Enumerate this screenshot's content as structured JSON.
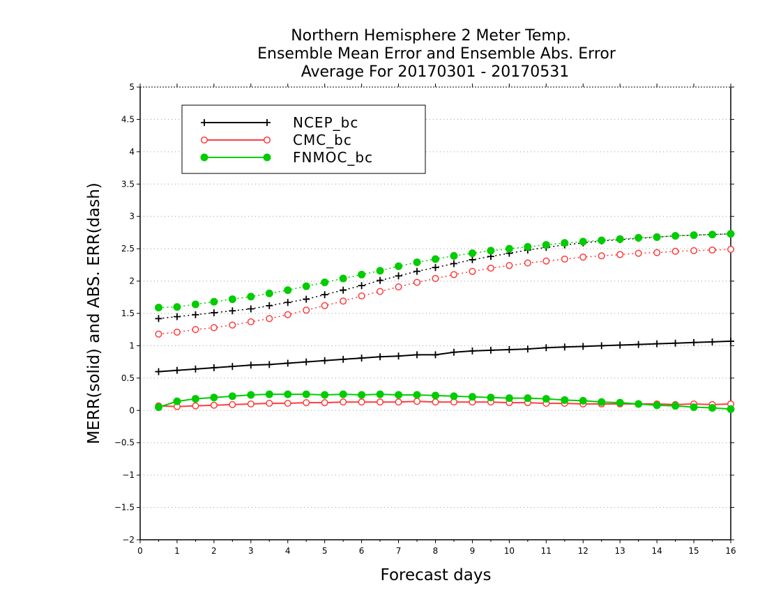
{
  "chart_data": {
    "type": "line",
    "title_lines": [
      "Northern Hemisphere 2 Meter Temp.",
      "Ensemble Mean Error and Ensemble Abs. Error",
      "Average For 20170301 - 20170531"
    ],
    "xlabel": "Forecast days",
    "ylabel": "MERR(solid) and ABS. ERR(dash)",
    "xlim": [
      0,
      16
    ],
    "ylim": [
      -2,
      5
    ],
    "x_ticks": [
      "0",
      "1",
      "2",
      "3",
      "4",
      "5",
      "6",
      "7",
      "8",
      "9",
      "10",
      "11",
      "12",
      "13",
      "14",
      "15",
      "16"
    ],
    "y_ticks": [
      "-2",
      "-1.5",
      "-1",
      "-0.5",
      "0",
      "0.5",
      "1",
      "1.5",
      "2",
      "2.5",
      "3",
      "3.5",
      "4",
      "4.5",
      "5"
    ],
    "grid": "horizontal dotted",
    "legend_position": "top-left",
    "x": [
      0.5,
      1,
      1.5,
      2,
      2.5,
      3,
      3.5,
      4,
      4.5,
      5,
      5.5,
      6,
      6.5,
      7,
      7.5,
      8,
      8.5,
      9,
      9.5,
      10,
      10.5,
      11,
      11.5,
      12,
      12.5,
      13,
      13.5,
      14,
      14.5,
      15,
      15.5,
      16
    ],
    "series": [
      {
        "name": "NCEP_bc",
        "color": "#000000",
        "marker": "plus",
        "merr": [
          0.6,
          0.62,
          0.64,
          0.66,
          0.68,
          0.7,
          0.71,
          0.73,
          0.75,
          0.77,
          0.79,
          0.81,
          0.83,
          0.84,
          0.86,
          0.86,
          0.9,
          0.92,
          0.93,
          0.94,
          0.95,
          0.97,
          0.98,
          0.99,
          1.0,
          1.01,
          1.02,
          1.03,
          1.04,
          1.05,
          1.06,
          1.07
        ],
        "abs_err": [
          1.42,
          1.45,
          1.48,
          1.51,
          1.54,
          1.57,
          1.62,
          1.67,
          1.72,
          1.79,
          1.86,
          1.93,
          2.01,
          2.08,
          2.15,
          2.21,
          2.27,
          2.33,
          2.38,
          2.43,
          2.48,
          2.52,
          2.56,
          2.59,
          2.62,
          2.64,
          2.66,
          2.68,
          2.7,
          2.71,
          2.72,
          2.73
        ]
      },
      {
        "name": "CMC_bc",
        "color": "#ff3b3b",
        "marker": "open-circle",
        "merr": [
          0.07,
          0.06,
          0.07,
          0.08,
          0.09,
          0.1,
          0.11,
          0.11,
          0.12,
          0.12,
          0.13,
          0.13,
          0.13,
          0.13,
          0.14,
          0.13,
          0.13,
          0.13,
          0.13,
          0.12,
          0.12,
          0.11,
          0.11,
          0.1,
          0.1,
          0.1,
          0.1,
          0.1,
          0.09,
          0.1,
          0.09,
          0.1
        ],
        "abs_err": [
          1.18,
          1.21,
          1.25,
          1.28,
          1.32,
          1.37,
          1.42,
          1.48,
          1.55,
          1.62,
          1.69,
          1.77,
          1.84,
          1.91,
          1.98,
          2.04,
          2.1,
          2.15,
          2.2,
          2.24,
          2.28,
          2.31,
          2.34,
          2.37,
          2.39,
          2.41,
          2.43,
          2.44,
          2.46,
          2.47,
          2.48,
          2.49
        ]
      },
      {
        "name": "FNMOC_bc",
        "color": "#00cc00",
        "marker": "filled-circle",
        "merr": [
          0.05,
          0.14,
          0.18,
          0.2,
          0.22,
          0.24,
          0.25,
          0.25,
          0.25,
          0.24,
          0.25,
          0.24,
          0.25,
          0.24,
          0.24,
          0.23,
          0.22,
          0.21,
          0.2,
          0.19,
          0.19,
          0.18,
          0.16,
          0.15,
          0.13,
          0.12,
          0.1,
          0.08,
          0.07,
          0.05,
          0.04,
          0.02
        ],
        "abs_err": [
          1.59,
          1.6,
          1.64,
          1.68,
          1.72,
          1.76,
          1.81,
          1.86,
          1.92,
          1.98,
          2.04,
          2.1,
          2.16,
          2.23,
          2.29,
          2.34,
          2.39,
          2.43,
          2.47,
          2.5,
          2.53,
          2.56,
          2.59,
          2.61,
          2.63,
          2.65,
          2.67,
          2.68,
          2.7,
          2.71,
          2.72,
          2.73
        ]
      }
    ]
  }
}
